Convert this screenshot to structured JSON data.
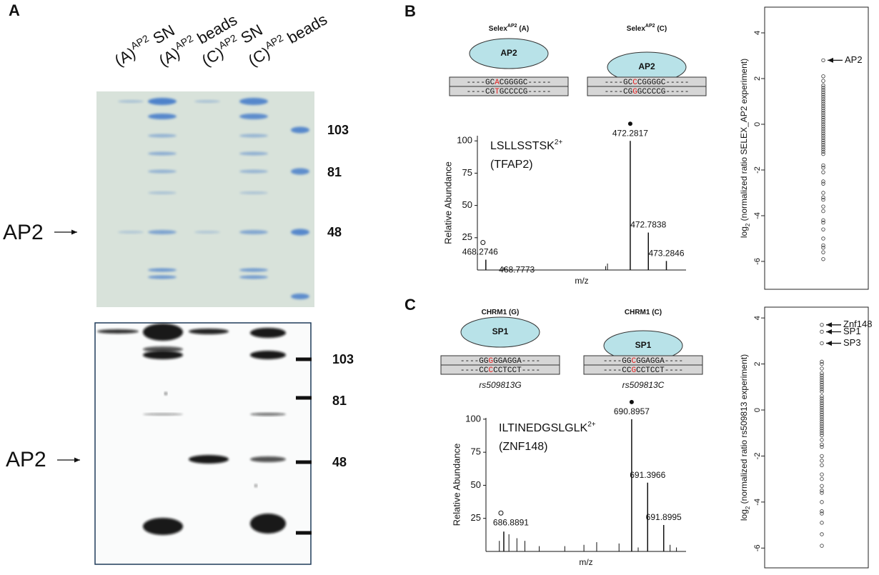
{
  "panel_a": {
    "letter": "A",
    "lanes": [
      {
        "pre": "(A)",
        "sup": "AP2",
        "post": " SN"
      },
      {
        "pre": "(A)",
        "sup": "AP2",
        "post": " beads"
      },
      {
        "pre": "(C)",
        "sup": "AP2",
        "post": " SN"
      },
      {
        "pre": "(C)",
        "sup": "AP2",
        "post": " beads"
      }
    ],
    "gel_markers": [
      103,
      81,
      48
    ],
    "gel_target": "AP2",
    "blot_markers": [
      103,
      81,
      48
    ],
    "blot_target": "AP2"
  },
  "panel_b": {
    "letter": "B",
    "constructs": [
      {
        "title": {
          "pre": "Selex",
          "sup": "AP2",
          "post": " (A)"
        },
        "protein": "AP2",
        "top": [
          "----GC",
          "A",
          "CGGGGC-----"
        ],
        "bottom": [
          "----CG",
          "T",
          "GCCCCG-----"
        ]
      },
      {
        "title": {
          "pre": "Selex",
          "sup": "AP2",
          "post": " (C)"
        },
        "protein": "AP2",
        "top": [
          "----GC",
          "C",
          "CGGGGC-----"
        ],
        "bottom": [
          "----CG",
          "G",
          "GCCCCG-----"
        ]
      }
    ],
    "spectrum": {
      "peptide": "LSLLSSTSK",
      "charge": "2+",
      "protein": "(TFAP2)",
      "y_label": "Relative Abundance",
      "x_label": "m/z",
      "xlim": [
        468.04,
        473.83
      ],
      "ylim": [
        0,
        104
      ],
      "yticks": [
        25,
        50,
        75,
        100
      ],
      "labeled_peaks": {
        "x": [
          468.2746,
          468.7773,
          472.2817,
          472.7838,
          473.2846
        ],
        "values": [
          8,
          2,
          100,
          29,
          7
        ]
      },
      "minor_peaks": {
        "x": [
          471.6,
          471.65
        ],
        "values": [
          3,
          5
        ]
      }
    },
    "scatter": {
      "y_label": {
        "pre": "log",
        "sub": "2",
        "post": " (normalized ratio SELEX_AP2 experiment)"
      },
      "ylim": [
        -7.22,
        5.125
      ],
      "yticks": [
        -6,
        -4,
        -2,
        0,
        2,
        4
      ],
      "values": [
        2.1,
        1.9,
        1.7,
        1.6,
        1.5,
        1.4,
        1.3,
        1.2,
        1.1,
        1.0,
        0.9,
        0.8,
        0.7,
        0.6,
        0.5,
        0.4,
        0.3,
        0.2,
        0.1,
        0,
        -0.1,
        -0.2,
        -0.3,
        -0.4,
        -0.5,
        -0.6,
        -0.7,
        -0.8,
        -0.9,
        -1.0,
        -1.1,
        -1.2,
        -1.3,
        -1.8,
        -1.9,
        -2.1,
        -2.5,
        -2.6,
        -3.0,
        -3.2,
        -3.3,
        -3.6,
        -3.8,
        -4.2,
        -4.3,
        -4.6,
        -5.0,
        -5.3,
        -5.4,
        -5.6,
        -5.9
      ],
      "annotations": [
        {
          "label": "AP2",
          "value": 2.8
        }
      ]
    }
  },
  "panel_c": {
    "letter": "C",
    "constructs": [
      {
        "title": {
          "pre": "CHRM1 (G)",
          "sup": "",
          "post": ""
        },
        "protein": "SP1",
        "top": [
          "----GG",
          "G",
          "GGAGGA----"
        ],
        "bottom": [
          "----CC",
          "C",
          "CCTCCT----"
        ],
        "allele": "rs509813G"
      },
      {
        "title": {
          "pre": "CHRM1 (C)",
          "sup": "",
          "post": ""
        },
        "protein": "SP1",
        "top": [
          "----GG",
          "C",
          "GGAGGA----"
        ],
        "bottom": [
          "----CC",
          "G",
          "CCTCCT----"
        ],
        "allele": "rs509813C"
      }
    ],
    "spectrum": {
      "peptide": "ILTINEDGSLGLK",
      "charge": "2+",
      "protein": "(ZNF148)",
      "y_label": "Relative Abundance",
      "x_label": "m/z",
      "xlim": [
        686.33,
        692.6
      ],
      "ylim": [
        0,
        101
      ],
      "yticks": [
        25,
        50,
        75,
        100
      ],
      "labeled_peaks": {
        "x": [
          686.8891,
          690.8957,
          691.3966,
          691.8995
        ],
        "values": [
          15,
          100,
          52,
          20
        ]
      },
      "minor_peaks": {
        "x": [
          686.75,
          687.05,
          687.3,
          687.55,
          688.0,
          688.8,
          689.4,
          689.8,
          690.5,
          691.1,
          692.1,
          692.3
        ],
        "values": [
          8,
          13,
          10,
          8,
          4,
          4,
          5,
          7,
          6,
          3,
          5,
          3
        ]
      }
    },
    "scatter": {
      "y_label": {
        "pre": "log",
        "sub": "2",
        "post": " (normalized ratio rs509813 experiment)"
      },
      "ylim": [
        -6.86,
        4.47
      ],
      "yticks": [
        -6,
        -4,
        -2,
        0,
        2,
        4
      ],
      "values": [
        2.1,
        2.0,
        1.8,
        1.6,
        1.5,
        1.4,
        1.3,
        1.2,
        1.1,
        1.0,
        0.9,
        0.8,
        0.6,
        0.5,
        0.4,
        0.3,
        0.2,
        0.1,
        0,
        -0.1,
        -0.2,
        -0.3,
        -0.4,
        -0.5,
        -0.6,
        -0.7,
        -0.8,
        -0.9,
        -1.0,
        -1.1,
        -1.3,
        -1.5,
        -1.6,
        -2.0,
        -2.2,
        -2.4,
        -2.8,
        -3.0,
        -3.3,
        -3.5,
        -3.6,
        -4.0,
        -4.4,
        -4.5,
        -4.9,
        -5.4,
        -5.9
      ],
      "annotations": [
        {
          "label": "Znf148",
          "value": 3.7
        },
        {
          "label": "SP1",
          "value": 3.4
        },
        {
          "label": "SP3",
          "value": 2.9
        }
      ]
    }
  }
}
